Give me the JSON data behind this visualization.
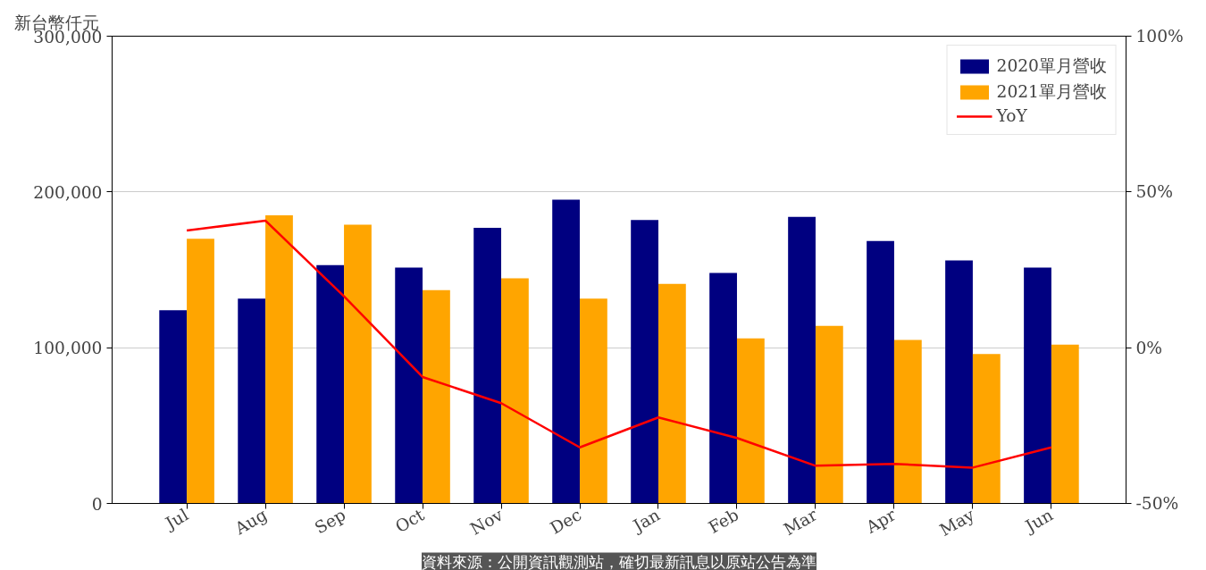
{
  "chart_data": {
    "type": "bar",
    "ylabel": "新台幣仟元",
    "categories": [
      "Jul",
      "Aug",
      "Sep",
      "Oct",
      "Nov",
      "Dec",
      "Jan",
      "Feb",
      "Mar",
      "Apr",
      "May",
      "Jun"
    ],
    "series": [
      {
        "name": "2020單月營收",
        "color": "#000080",
        "values": [
          124000,
          131500,
          153000,
          151500,
          177000,
          195000,
          182000,
          148000,
          184000,
          168500,
          156000,
          151500
        ]
      },
      {
        "name": "2021單月營收",
        "color": "#ffa500",
        "values": [
          170000,
          185000,
          179000,
          137000,
          144500,
          131500,
          141000,
          106000,
          114000,
          105000,
          96000,
          102000
        ]
      },
      {
        "name": "YoY",
        "type": "line",
        "axis": "y2",
        "color": "#ff0000",
        "values": [
          37.6,
          40.8,
          16.5,
          -9.4,
          -17.8,
          -32,
          -22.4,
          -29,
          -37.9,
          -37.3,
          -38.5,
          -32
        ]
      }
    ],
    "ylim": [
      0,
      300000
    ],
    "yticks": [
      0,
      {
        "value": 100000,
        "label": "100,000"
      },
      {
        "value": 200000,
        "label": "200,000"
      },
      {
        "value": 300000,
        "label": "300,000"
      }
    ],
    "y2lim": [
      -50,
      100
    ],
    "y2ticks": [
      {
        "value": -50,
        "label": "-50%"
      },
      {
        "value": 0,
        "label": "0%"
      },
      {
        "value": 50,
        "label": "50%"
      },
      {
        "value": 100,
        "label": "100%"
      }
    ],
    "grid": "y",
    "legend": "top right",
    "annotations": [
      "資料來源：公開資訊觀測站，確切最新訊息以原站公告為準"
    ]
  }
}
